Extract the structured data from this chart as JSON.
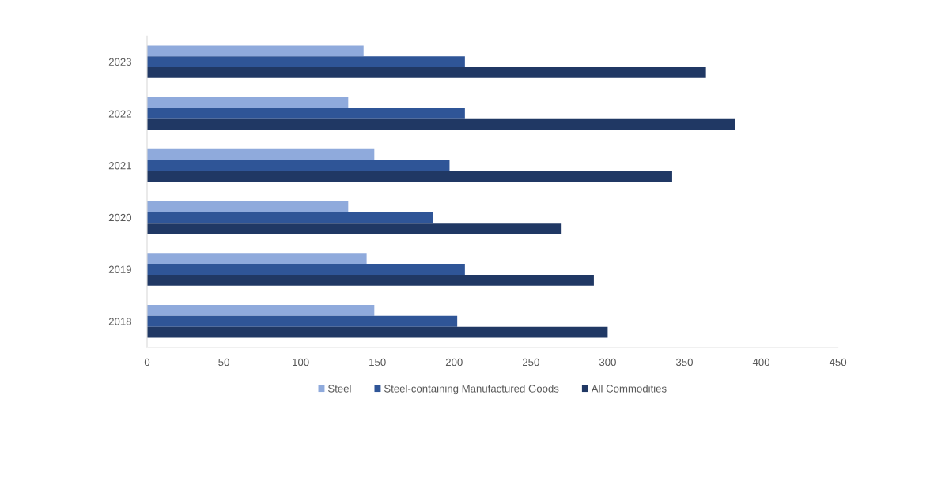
{
  "chart_data": {
    "type": "bar",
    "orientation": "horizontal",
    "categories": [
      "2023",
      "2022",
      "2021",
      "2020",
      "2019",
      "2018"
    ],
    "series": [
      {
        "name": "Steel",
        "color": "#8faadc",
        "values": [
          141,
          131,
          148,
          131,
          143,
          148
        ]
      },
      {
        "name": "Steel-containing Manufactured Goods",
        "color": "#2f5597",
        "values": [
          207,
          207,
          197,
          186,
          207,
          202
        ]
      },
      {
        "name": "All Commodities",
        "color": "#203864",
        "values": [
          364,
          383,
          342,
          270,
          291,
          300
        ]
      }
    ],
    "xlim": [
      0,
      450
    ],
    "xticks": [
      0,
      50,
      100,
      150,
      200,
      250,
      300,
      350,
      400,
      450
    ],
    "grid": false,
    "legend": "bottom"
  }
}
